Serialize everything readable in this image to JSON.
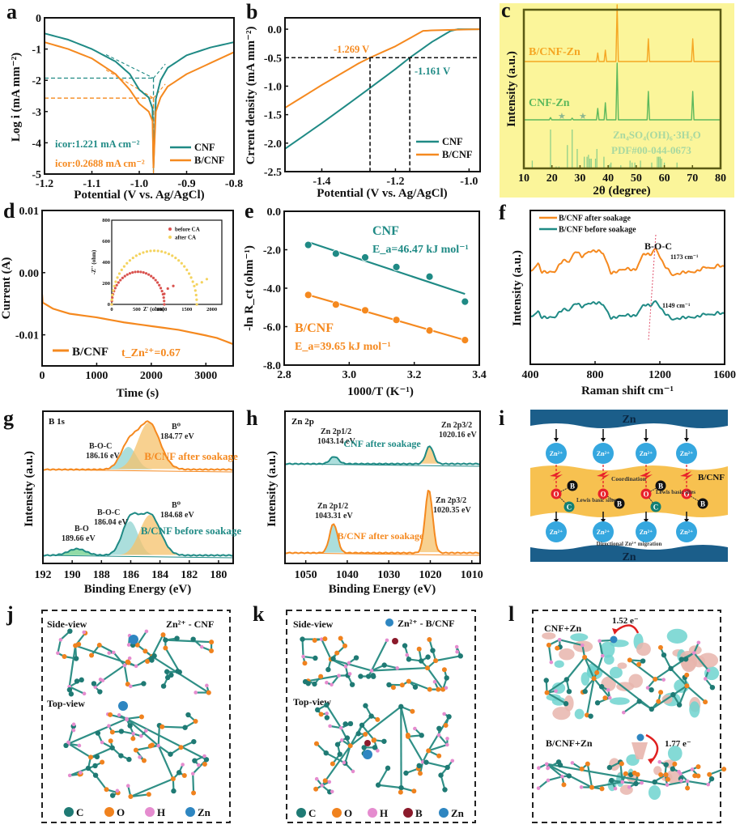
{
  "colors": {
    "cnf": "#1f8a85",
    "bcnf": "#f5891f",
    "green": "#5cb85c",
    "lightgreen": "#9fd49a",
    "yellow_bg": "#fbf59a",
    "blue": "#2e86c1",
    "navy": "#1b5e8a"
  },
  "panels": {
    "a": {
      "label": "a"
    },
    "b": {
      "label": "b"
    },
    "c": {
      "label": "c"
    },
    "d": {
      "label": "d"
    },
    "e": {
      "label": "e"
    },
    "f": {
      "label": "f"
    },
    "g": {
      "label": "g"
    },
    "h": {
      "label": "h"
    },
    "i": {
      "label": "i"
    },
    "j": {
      "label": "j"
    },
    "k": {
      "label": "k"
    },
    "l": {
      "label": "l"
    }
  },
  "chart_data": [
    {
      "id": "a",
      "type": "line",
      "title": "",
      "xlabel": "Potential (V vs. Ag/AgCl)",
      "ylabel": "Log i (mA mm⁻²)",
      "xlim": [
        -1.2,
        -0.8
      ],
      "ylim": [
        -5,
        0
      ],
      "xticks": [
        "-1.2",
        "-1.1",
        "-1.0",
        "-0.9",
        "-0.8"
      ],
      "yticks": [
        "0",
        "-1",
        "-2",
        "-3",
        "-4",
        "-5"
      ],
      "series": [
        {
          "name": "CNF",
          "x": [
            -1.2,
            -1.15,
            -1.1,
            -1.05,
            -1.02,
            -1.0,
            -0.98,
            -0.972,
            -0.97,
            -0.965,
            -0.955,
            -0.94,
            -0.9,
            -0.85,
            -0.8
          ],
          "y": [
            -0.5,
            -0.7,
            -1.0,
            -1.4,
            -1.8,
            -2.3,
            -2.55,
            -2.9,
            -4.8,
            -2.6,
            -2.0,
            -1.6,
            -1.2,
            -0.95,
            -0.78
          ]
        },
        {
          "name": "B/CNF",
          "x": [
            -1.2,
            -1.15,
            -1.1,
            -1.05,
            -1.02,
            -1.0,
            -0.98,
            -0.972,
            -0.97,
            -0.965,
            -0.955,
            -0.94,
            -0.9,
            -0.85,
            -0.8
          ],
          "y": [
            -0.78,
            -1.0,
            -1.3,
            -1.8,
            -2.3,
            -2.75,
            -3.0,
            -3.3,
            -4.8,
            -3.0,
            -2.55,
            -2.2,
            -1.8,
            -1.45,
            -1.1
          ]
        }
      ],
      "annotations": [
        "icor:1.221 mA cm⁻²",
        "icor:0.2688 mA cm⁻²"
      ],
      "icor_log": {
        "CNF": -1.93,
        "B/CNF": -2.57
      },
      "ecorr": -0.97,
      "legend": [
        "CNF",
        "B/CNF"
      ],
      "legend_position": "bottom-right"
    },
    {
      "id": "b",
      "type": "line",
      "xlabel": "Potential (V vs. Ag/AgCl)",
      "ylabel": "Crrent density (mA mm⁻²)",
      "xlim": [
        -1.5,
        -0.97
      ],
      "ylim": [
        -2.5,
        0.2
      ],
      "xticks": [
        "-1.4",
        "-1.2",
        "-1.0"
      ],
      "yticks": [
        "0.0",
        "-0.5",
        "-1.0",
        "-1.5",
        "-2.0",
        "-2.5"
      ],
      "series": [
        {
          "name": "CNF",
          "x": [
            -1.5,
            -1.4,
            -1.3,
            -1.2,
            -1.161,
            -1.1,
            -1.05,
            -1.03,
            -0.97
          ],
          "y": [
            -2.1,
            -1.65,
            -1.18,
            -0.7,
            -0.5,
            -0.22,
            -0.03,
            0.0,
            0.0
          ]
        },
        {
          "name": "B/CNF",
          "x": [
            -1.5,
            -1.4,
            -1.3,
            -1.269,
            -1.2,
            -1.125,
            -1.1,
            -0.97
          ],
          "y": [
            -1.38,
            -0.98,
            -0.6,
            -0.5,
            -0.3,
            -0.03,
            -0.02,
            0.0
          ]
        }
      ],
      "annotations": [
        "-1.269 V",
        "-1.161 V"
      ],
      "ref_current": -0.5,
      "legend": [
        "CNF",
        "B/CNF"
      ],
      "legend_position": "bottom-right"
    },
    {
      "id": "c",
      "type": "line",
      "xlabel": "2θ (degree)",
      "ylabel": "Intensity (a.u.)",
      "xlim": [
        10,
        80
      ],
      "xticks": [
        "10",
        "20",
        "30",
        "40",
        "50",
        "60",
        "70",
        "80"
      ],
      "series": [
        {
          "name": "B/CNF-Zn",
          "peaks": [
            [
              36.3,
              0.15
            ],
            [
              39.0,
              0.2
            ],
            [
              43.2,
              1.0
            ],
            [
              54.3,
              0.4
            ],
            [
              70.1,
              0.4
            ]
          ]
        },
        {
          "name": "CNF-Zn",
          "peaks": [
            [
              19.5,
              0.04
            ],
            [
              27.2,
              0.03
            ],
            [
              36.3,
              0.2
            ],
            [
              39.0,
              0.3
            ],
            [
              43.2,
              1.0
            ],
            [
              54.3,
              0.5
            ],
            [
              70.1,
              0.5
            ]
          ]
        }
      ],
      "reference": {
        "name": "Zn₄SO₄(OH)₆·3H₂O",
        "pdf": "PDF#00-044-0673",
        "lines": [
          [
            13,
            0.2
          ],
          [
            19.5,
            1.0
          ],
          [
            21.5,
            0.05
          ],
          [
            22.5,
            0.05
          ],
          [
            25.5,
            0.6
          ],
          [
            27.2,
            1.0
          ],
          [
            29,
            0.5
          ],
          [
            31.5,
            0.3
          ],
          [
            32.5,
            0.3
          ],
          [
            33,
            0.35
          ],
          [
            33.5,
            0.25
          ],
          [
            34,
            0.25
          ],
          [
            35.5,
            0.25
          ],
          [
            36,
            0.5
          ],
          [
            38.5,
            0.3
          ],
          [
            40.5,
            0.1
          ],
          [
            41,
            0.15
          ],
          [
            44.5,
            0.08
          ],
          [
            47.8,
            0.2
          ],
          [
            48.5,
            0.15
          ],
          [
            49.5,
            0.15
          ],
          [
            51.5,
            0.2
          ],
          [
            55.5,
            0.15
          ],
          [
            57.5,
            0.3
          ],
          [
            58,
            0.3
          ],
          [
            58.5,
            0.3
          ],
          [
            59,
            0.25
          ],
          [
            60,
            0.15
          ],
          [
            64.5,
            0.15
          ]
        ]
      },
      "markers": [
        "★",
        "★"
      ],
      "labels": [
        "B/CNF-Zn",
        "CNF-Zn",
        "Zn₄SO₄(OH)₆·3H₂O",
        "PDF#00-044-0673"
      ]
    },
    {
      "id": "d",
      "type": "line",
      "xlabel": "Time (s)",
      "ylabel": "Current (A)",
      "xlim": [
        0,
        3500
      ],
      "ylim": [
        -0.015,
        0.01
      ],
      "xticks": [
        "0",
        "1000",
        "2000",
        "3000"
      ],
      "yticks": [
        "0.01",
        "0.00",
        "-0.01"
      ],
      "series": [
        {
          "name": "B/CNF",
          "x": [
            0,
            10,
            200,
            500,
            1000,
            1500,
            2000,
            2500,
            3000,
            3200,
            3500
          ],
          "y": [
            -0.0035,
            -0.0048,
            -0.0058,
            -0.0066,
            -0.0072,
            -0.008,
            -0.0086,
            -0.0092,
            -0.0101,
            -0.0105,
            -0.0115
          ]
        }
      ],
      "annotation": "t_Zn²⁺=0.67",
      "legend": [
        "B/CNF"
      ],
      "inset": {
        "xlabel": "Z' (ohm)",
        "ylabel": "-Z'' (ohm)",
        "xlim": [
          0,
          2200
        ],
        "ylim": [
          0,
          800
        ],
        "xticks": [
          "0",
          "500",
          "1000",
          "1500",
          "2000"
        ],
        "yticks": [
          "0",
          "200",
          "400",
          "600",
          "800"
        ],
        "series": [
          {
            "name": "before CA",
            "color": "#d9534f",
            "arc": {
              "r_start": 0,
              "r_end": 1050,
              "peak": 310
            },
            "tail": [
              [
                1050,
                100
              ],
              [
                1120,
                150
              ],
              [
                1230,
                175
              ]
            ]
          },
          {
            "name": "after CA",
            "color": "#f4d35e",
            "arc": {
              "r_start": 0,
              "r_end": 1700,
              "peak": 510
            },
            "tail": [
              [
                1700,
                190
              ],
              [
                1800,
                210
              ],
              [
                1900,
                240
              ]
            ]
          }
        ]
      }
    },
    {
      "id": "e",
      "type": "scatter",
      "xlabel": "1000/T (K⁻¹)",
      "ylabel": "-ln R_ct (ohm⁻¹)",
      "xlim": [
        2.8,
        3.4
      ],
      "ylim": [
        -8,
        0
      ],
      "xticks": [
        "2.8",
        "3.0",
        "3.2",
        "3.4"
      ],
      "yticks": [
        "0.0",
        "-2.0",
        "-4.0",
        "-6.0",
        "-8.0"
      ],
      "series": [
        {
          "name": "CNF",
          "x": [
            2.874,
            2.959,
            3.049,
            3.145,
            3.247,
            3.356
          ],
          "y": [
            -1.75,
            -2.2,
            -2.4,
            -2.9,
            -3.4,
            -4.7
          ],
          "fit": [
            [
              2.874,
              -1.6
            ],
            [
              3.356,
              -4.3
            ]
          ],
          "label": "E_a=46.47 kJ mol⁻¹"
        },
        {
          "name": "B/CNF",
          "x": [
            2.874,
            2.959,
            3.049,
            3.145,
            3.247,
            3.356
          ],
          "y": [
            -4.35,
            -4.85,
            -5.15,
            -5.65,
            -6.2,
            -6.7
          ],
          "fit": [
            [
              2.874,
              -4.35
            ],
            [
              3.356,
              -6.7
            ]
          ],
          "label": "E_a=39.65 kJ mol⁻¹"
        }
      ]
    },
    {
      "id": "f",
      "type": "line",
      "xlabel": "Raman shift cm⁻¹",
      "ylabel": "Intensity (a.u.)",
      "xlim": [
        400,
        1600
      ],
      "xticks": [
        "400",
        "800",
        "1200",
        "1600"
      ],
      "series": [
        {
          "name": "B/CNF after soakage"
        },
        {
          "name": "B/CNF before soakage"
        }
      ],
      "annotations": [
        "B-O-C",
        "1173 cm⁻¹",
        "1149 cm⁻¹"
      ],
      "peaks": {
        "after": 1173,
        "before": 1149
      },
      "legend_position": "top-left"
    },
    {
      "id": "g",
      "type": "line",
      "xlabel": "Binding Energy (eV)",
      "ylabel": "Intensity (a.u.)",
      "xlim": [
        192,
        179
      ],
      "xticks": [
        "192",
        "190",
        "188",
        "186",
        "184",
        "182",
        "180"
      ],
      "title": "B 1s",
      "series": [
        {
          "name": "B/CNF after soakage",
          "components": [
            {
              "label": "B-O-C",
              "center": 186.16,
              "value": "186.16 eV"
            },
            {
              "label": "B⁰",
              "center": 184.77,
              "value": "184.77 eV"
            }
          ]
        },
        {
          "name": "B/CNF before soakage",
          "components": [
            {
              "label": "B-O",
              "center": 189.66,
              "value": "189.66 eV"
            },
            {
              "label": "B-O-C",
              "center": 186.04,
              "value": "186.04 eV"
            },
            {
              "label": "B⁰",
              "center": 184.68,
              "value": "184.68 eV"
            }
          ]
        }
      ]
    },
    {
      "id": "h",
      "type": "line",
      "xlabel": "Binding Energy (eV)",
      "ylabel": "Intensity (a.u.)",
      "xlim": [
        1055,
        1008
      ],
      "xticks": [
        "1050",
        "1040",
        "1030",
        "1020",
        "1010"
      ],
      "title": "Zn 2p",
      "series": [
        {
          "name": "CNF after soakage",
          "components": [
            {
              "label": "Zn 2p1/2",
              "center": 1043.14,
              "value": "1043.14 eV"
            },
            {
              "label": "Zn 2p3/2",
              "center": 1020.16,
              "value": "1020.16 eV"
            }
          ]
        },
        {
          "name": "B/CNF after soakage",
          "components": [
            {
              "label": "Zn 2p1/2",
              "center": 1043.31,
              "value": "1043.31 eV"
            },
            {
              "label": "Zn 2p3/2",
              "center": 1020.35,
              "value": "1020.35 eV"
            }
          ]
        }
      ]
    }
  ],
  "schematic_i": {
    "top": "Zn",
    "bottom": "Zn",
    "ion": "Zn²⁺",
    "layer": "B/CNF",
    "labels": [
      "Coordination",
      "Lewis basic sites",
      "Lewis basic sites",
      "Directional Zn²⁺ migration"
    ],
    "atoms": {
      "O": "O",
      "B": "B",
      "C": "C"
    }
  },
  "structure_j": {
    "side": "Side-view",
    "top": "Top-view",
    "title": "Zn²⁺ - CNF",
    "legend": [
      "C",
      "O",
      "H",
      "Zn"
    ]
  },
  "structure_k": {
    "side": "Side-view",
    "top": "Top-view",
    "title": "Zn²⁺ - B/CNF",
    "legend": [
      "C",
      "O",
      "H",
      "B",
      "Zn"
    ]
  },
  "structure_l": {
    "top_label": "CNF+Zn",
    "top_charge": "1.52 e⁻",
    "bottom_label": "B/CNF+Zn",
    "bottom_charge": "1.77 e⁻"
  }
}
